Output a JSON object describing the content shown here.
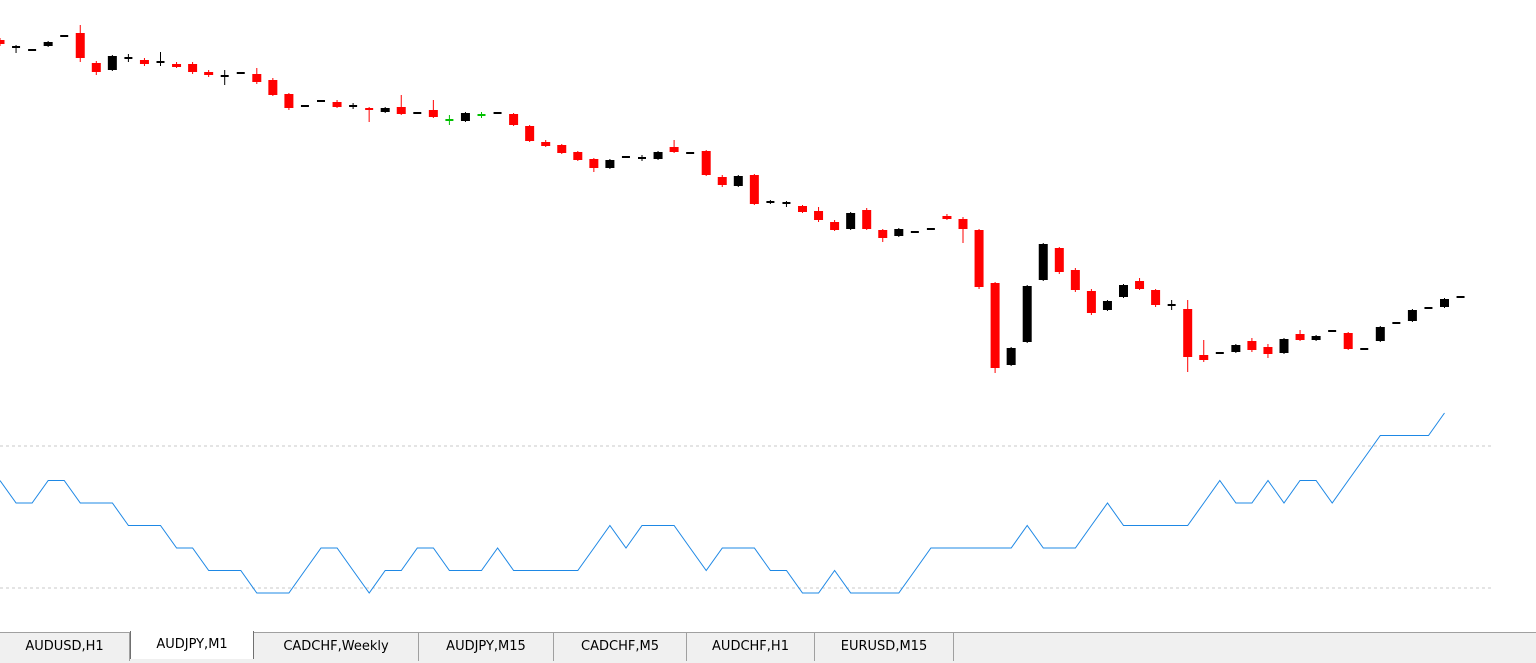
{
  "chart_data": {
    "type": "candlestick",
    "ylim": [
      0,
      400
    ],
    "up_color": "#000000",
    "down_color": "#ff0000",
    "doji_color": "#00c000",
    "candles": [
      [
        360,
        362,
        354,
        356
      ],
      [
        353,
        355,
        347,
        353
      ],
      [
        350,
        351,
        349,
        350
      ],
      [
        354,
        359,
        353,
        358
      ],
      [
        364,
        365,
        363,
        364
      ],
      [
        367,
        375,
        338,
        342
      ],
      [
        337,
        339,
        325,
        328
      ],
      [
        330,
        345,
        329,
        344
      ],
      [
        342,
        346,
        338,
        342
      ],
      [
        340,
        342,
        334,
        336
      ],
      [
        338,
        348,
        334,
        338
      ],
      [
        336,
        338,
        332,
        333
      ],
      [
        336,
        338,
        326,
        328
      ],
      [
        328,
        330,
        323,
        325
      ],
      [
        324,
        330,
        315,
        324
      ],
      [
        327,
        328,
        326,
        327
      ],
      [
        326,
        332,
        316,
        318
      ],
      [
        320,
        322,
        304,
        305
      ],
      [
        306,
        307,
        290,
        292
      ],
      [
        294,
        295,
        293,
        294
      ],
      [
        299,
        300,
        298,
        299
      ],
      [
        298,
        300,
        292,
        293
      ],
      [
        294,
        297,
        291,
        294
      ],
      [
        291,
        293,
        278,
        290
      ],
      [
        288,
        293,
        287,
        292
      ],
      [
        293,
        305,
        285,
        286
      ],
      [
        287,
        288,
        286,
        287
      ],
      [
        290,
        300,
        282,
        283
      ],
      [
        280,
        285,
        275,
        280
      ],
      [
        279,
        288,
        278,
        287
      ],
      [
        285,
        288,
        282,
        285
      ],
      [
        287,
        288,
        286,
        287
      ],
      [
        286,
        287,
        274,
        275
      ],
      [
        274,
        275,
        258,
        259
      ],
      [
        258,
        260,
        253,
        254
      ],
      [
        255,
        256,
        246,
        247
      ],
      [
        248,
        249,
        239,
        240
      ],
      [
        241,
        242,
        228,
        232
      ],
      [
        232,
        241,
        231,
        240
      ],
      [
        243,
        244,
        242,
        243
      ],
      [
        242,
        245,
        239,
        242
      ],
      [
        241,
        249,
        240,
        248
      ],
      [
        253,
        260,
        247,
        248
      ],
      [
        247,
        248,
        246,
        247
      ],
      [
        249,
        250,
        224,
        225
      ],
      [
        223,
        225,
        213,
        215
      ],
      [
        214,
        225,
        213,
        224
      ],
      [
        225,
        226,
        195,
        196
      ],
      [
        198,
        200,
        196,
        198
      ],
      [
        197,
        199,
        193,
        197
      ],
      [
        194,
        195,
        187,
        188
      ],
      [
        189,
        193,
        178,
        180
      ],
      [
        178,
        180,
        169,
        170
      ],
      [
        171,
        188,
        170,
        187
      ],
      [
        190,
        192,
        170,
        171
      ],
      [
        170,
        171,
        158,
        162
      ],
      [
        164,
        172,
        163,
        171
      ],
      [
        168,
        169,
        167,
        168
      ],
      [
        171,
        172,
        170,
        171
      ],
      [
        184,
        186,
        180,
        181
      ],
      [
        181,
        183,
        157,
        171
      ],
      [
        170,
        171,
        111,
        113
      ],
      [
        117,
        118,
        27,
        32
      ],
      [
        35,
        53,
        34,
        52
      ],
      [
        58,
        115,
        57,
        114
      ],
      [
        120,
        157,
        119,
        156
      ],
      [
        152,
        153,
        126,
        128
      ],
      [
        130,
        132,
        108,
        110
      ],
      [
        109,
        111,
        85,
        87
      ],
      [
        90,
        100,
        89,
        99
      ],
      [
        103,
        116,
        102,
        115
      ],
      [
        119,
        122,
        110,
        111
      ],
      [
        110,
        111,
        93,
        95
      ],
      [
        95,
        100,
        90,
        95
      ],
      [
        91,
        100,
        28,
        43
      ],
      [
        45,
        60,
        38,
        40
      ],
      [
        47,
        48,
        46,
        47
      ],
      [
        48,
        56,
        47,
        55
      ],
      [
        59,
        62,
        48,
        50
      ],
      [
        53,
        56,
        42,
        46
      ],
      [
        47,
        62,
        46,
        61
      ],
      [
        66,
        70,
        59,
        60
      ],
      [
        60,
        65,
        59,
        64
      ],
      [
        69,
        70,
        68,
        69
      ],
      [
        67,
        68,
        50,
        51
      ],
      [
        51,
        52,
        50,
        51
      ],
      [
        59,
        74,
        58,
        73
      ],
      [
        77,
        78,
        76,
        77
      ],
      [
        79,
        91,
        78,
        90
      ],
      [
        92,
        93,
        91,
        92
      ],
      [
        93,
        102,
        92,
        101
      ],
      [
        103,
        104,
        102,
        103
      ]
    ],
    "doji_marked": [
      28,
      30
    ],
    "indicator": {
      "color": "#1e88e5",
      "ylim": [
        -0.8,
        8.5
      ],
      "values": [
        5,
        4,
        4,
        5,
        5,
        4,
        4,
        4,
        3,
        3,
        3,
        2,
        2,
        1,
        1,
        1,
        0,
        0,
        0,
        1,
        2,
        2,
        1,
        0,
        1,
        1,
        2,
        2,
        1,
        1,
        1,
        2,
        1,
        1,
        1,
        1,
        1,
        2,
        3,
        2,
        3,
        3,
        3,
        2,
        1,
        2,
        2,
        2,
        1,
        1,
        0,
        0,
        1,
        0,
        0,
        0,
        0,
        1,
        2,
        2,
        2,
        2,
        2,
        2,
        3,
        2,
        2,
        2,
        3,
        4,
        3,
        3,
        3,
        3,
        3,
        4,
        5,
        4,
        4,
        5,
        4,
        5,
        5,
        4,
        5,
        6,
        7,
        7,
        7,
        7,
        8,
        null
      ]
    }
  },
  "tabs": [
    "AUDUSD,H1",
    "AUDJPY,M1",
    "CADCHF,Weekly",
    "AUDJPY,M15",
    "CADCHF,M5",
    "AUDCHF,H1",
    "EURUSD,M15"
  ],
  "active_tab": 1
}
